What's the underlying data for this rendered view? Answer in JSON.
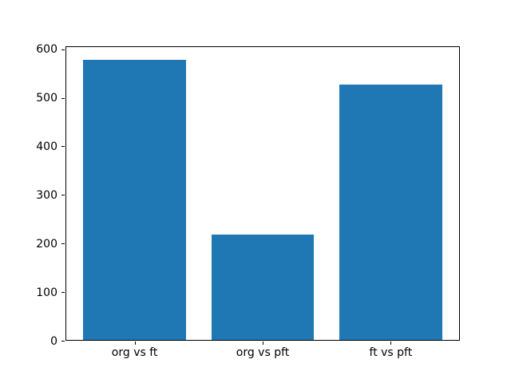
{
  "figure": {
    "background": "#ffffff",
    "spine_color": "#000000",
    "tick_color": "#000000",
    "text_color": "#000000"
  },
  "chart_data": {
    "type": "bar",
    "title": "",
    "xlabel": "",
    "ylabel": "",
    "categories": [
      "org vs ft",
      "org vs pft",
      "ft vs pft"
    ],
    "values": [
      577,
      216,
      525
    ],
    "x": [
      0,
      1,
      2
    ],
    "bar_width": 0.8,
    "bar_color": "#1f77b4",
    "ylim": [
      0,
      606
    ],
    "xlim": [
      -0.54,
      2.54
    ],
    "yticks": [
      0,
      100,
      200,
      300,
      400,
      500,
      600
    ],
    "grid": false,
    "legend": null
  }
}
